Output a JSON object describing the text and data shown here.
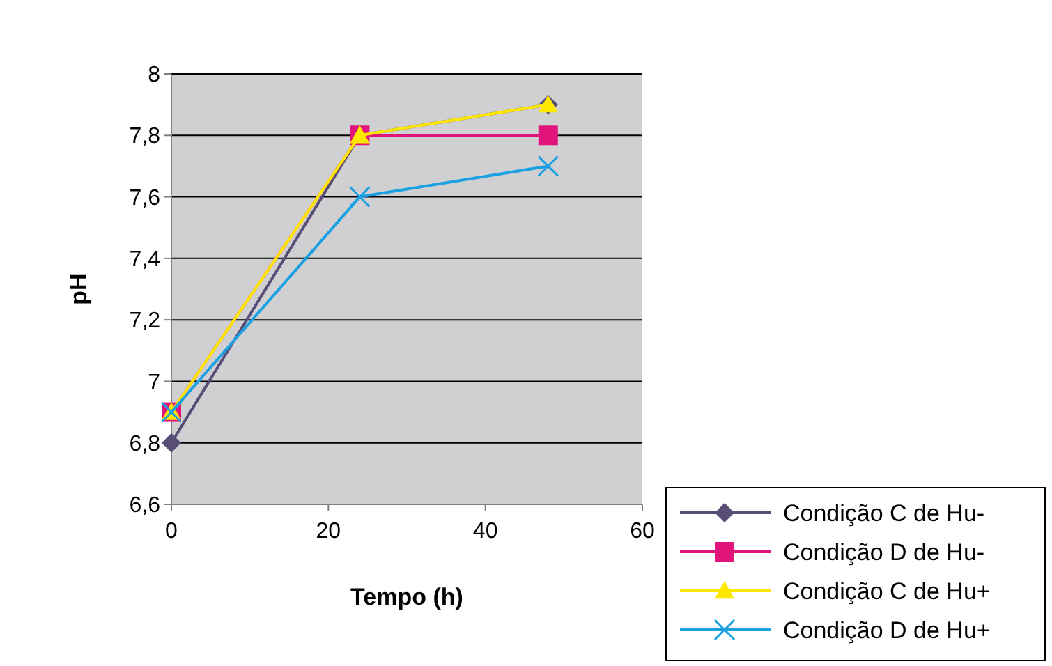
{
  "chart_data": {
    "type": "line",
    "xlabel": "Tempo (h)",
    "ylabel": "pH",
    "x": [
      0,
      24,
      48
    ],
    "series": [
      {
        "name": "Condição C de Hu-",
        "color": "#574d75",
        "values": [
          6.8,
          7.8,
          7.9
        ],
        "marker": "diamond"
      },
      {
        "name": "Condição D de Hu-",
        "color": "#e0147a",
        "values": [
          6.9,
          7.8,
          7.8
        ],
        "marker": "square"
      },
      {
        "name": "Condição C de Hu+",
        "color": "#ffe800",
        "values": [
          6.9,
          7.8,
          7.9
        ],
        "marker": "triangle"
      },
      {
        "name": "Condição D de Hu+",
        "color": "#1ba1e2",
        "values": [
          6.9,
          7.6,
          7.7
        ],
        "marker": "cross"
      }
    ],
    "xlim": [
      0,
      60
    ],
    "xticks": [
      0,
      20,
      40,
      60
    ],
    "ylim": [
      6.6,
      8
    ],
    "yticks": [
      {
        "value": 6.6,
        "label": "6,6"
      },
      {
        "value": 6.8,
        "label": "6,8"
      },
      {
        "value": 7,
        "label": "7"
      },
      {
        "value": 7.2,
        "label": "7,2"
      },
      {
        "value": 7.4,
        "label": "7,4"
      },
      {
        "value": 7.6,
        "label": "7,6"
      },
      {
        "value": 7.8,
        "label": "7,8"
      },
      {
        "value": 8,
        "label": "8"
      }
    ],
    "grid": "y",
    "legend": "bottom right",
    "line_style": "solid"
  }
}
